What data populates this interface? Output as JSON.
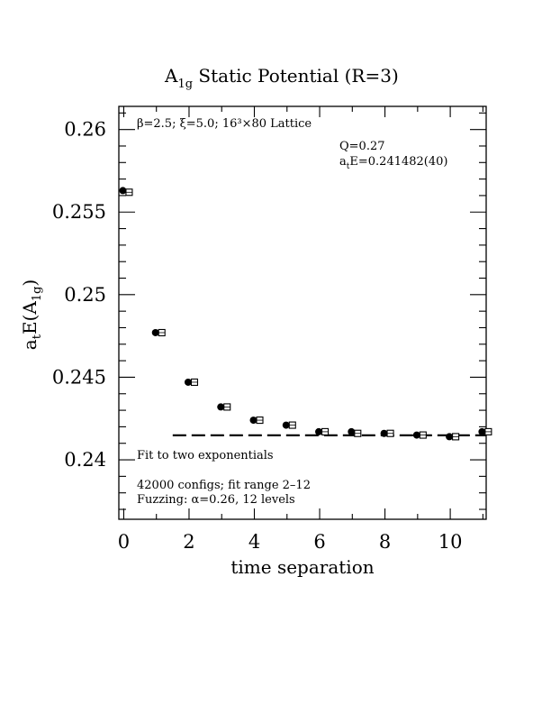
{
  "chart_data": {
    "type": "scatter",
    "title": "A1g Static Potential (R=3)",
    "xlabel": "time separation",
    "ylabel": "atE(A1g)",
    "xlim": [
      -0.15,
      11.1
    ],
    "ylim": [
      0.2364,
      0.2614
    ],
    "xticks": [
      0,
      2,
      4,
      6,
      8,
      10
    ],
    "yticks": [
      0.24,
      0.245,
      0.25,
      0.255,
      0.26
    ],
    "xtick_labels": [
      "0",
      "2",
      "4",
      "6",
      "8",
      "10"
    ],
    "ytick_labels": [
      "0.24",
      "0.245",
      "0.25",
      "0.255",
      "0.26"
    ],
    "series": [
      {
        "marker": "filled-circle",
        "x": [
          0,
          1,
          2,
          3,
          4,
          5,
          6,
          7,
          8,
          9,
          10,
          11
        ],
        "y": [
          0.2563,
          0.2477,
          0.2447,
          0.2432,
          0.2424,
          0.2421,
          0.2417,
          0.2417,
          0.2416,
          0.2415,
          0.2414,
          0.2417
        ]
      },
      {
        "marker": "open-box",
        "x": [
          0,
          1,
          2,
          3,
          4,
          5,
          6,
          7,
          8,
          9,
          10,
          11
        ],
        "y": [
          0.2562,
          0.2477,
          0.2447,
          0.2432,
          0.2424,
          0.2421,
          0.2417,
          0.2416,
          0.2416,
          0.2415,
          0.2414,
          0.2417
        ]
      }
    ],
    "fit_line": {
      "x_start": 1.5,
      "x_end": 11.1,
      "y": 0.241482,
      "style": "dashed"
    },
    "annotations": {
      "lattice": "β=2.5; ξ=5.0; 16³×80 Lattice",
      "q_value": "Q=0.27",
      "energy": "atE=0.241482(40)",
      "fit_type": "Fit to two exponentials",
      "configs": "42000 configs; fit range 2–12",
      "fuzzing": "Fuzzing: α=0.26, 12 levels"
    },
    "grid": false,
    "legend": "none"
  }
}
